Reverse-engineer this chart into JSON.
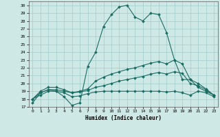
{
  "xlabel": "Humidex (Indice chaleur)",
  "xlim": [
    -0.5,
    23.5
  ],
  "ylim": [
    17,
    30.5
  ],
  "yticks": [
    17,
    18,
    19,
    20,
    21,
    22,
    23,
    24,
    25,
    26,
    27,
    28,
    29,
    30
  ],
  "xticks": [
    0,
    1,
    2,
    3,
    4,
    5,
    6,
    7,
    8,
    9,
    10,
    11,
    12,
    13,
    14,
    15,
    16,
    17,
    18,
    19,
    20,
    21,
    22,
    23
  ],
  "bg_color": "#cde8e5",
  "grid_color": "#a0ccc8",
  "line_color": "#1a6b63",
  "lines": [
    {
      "x": [
        0,
        1,
        2,
        3,
        4,
        5,
        6,
        7,
        8,
        9,
        10,
        11,
        12,
        13,
        14,
        15,
        16,
        17,
        18,
        19,
        20,
        21,
        22,
        23
      ],
      "y": [
        17.5,
        18.8,
        19.2,
        19.0,
        18.3,
        17.2,
        17.5,
        22.2,
        24.0,
        27.3,
        28.8,
        29.8,
        30.0,
        28.5,
        28.0,
        29.0,
        28.8,
        26.5,
        23.0,
        20.5,
        20.5,
        19.5,
        19.0,
        18.5
      ]
    },
    {
      "x": [
        0,
        1,
        2,
        3,
        4,
        5,
        6,
        7,
        8,
        9,
        10,
        11,
        12,
        13,
        14,
        15,
        16,
        17,
        18,
        19,
        20,
        21,
        22,
        23
      ],
      "y": [
        18.0,
        19.0,
        19.5,
        19.5,
        19.2,
        18.8,
        19.0,
        19.3,
        20.3,
        20.8,
        21.2,
        21.5,
        21.8,
        22.0,
        22.3,
        22.6,
        22.8,
        22.5,
        23.0,
        22.5,
        20.5,
        20.0,
        19.3,
        18.5
      ]
    },
    {
      "x": [
        0,
        1,
        2,
        3,
        4,
        5,
        6,
        7,
        8,
        9,
        10,
        11,
        12,
        13,
        14,
        15,
        16,
        17,
        18,
        19,
        20,
        21,
        22,
        23
      ],
      "y": [
        18.0,
        18.8,
        19.2,
        19.2,
        19.0,
        18.8,
        18.9,
        19.1,
        19.5,
        19.7,
        20.0,
        20.3,
        20.5,
        20.7,
        20.9,
        21.2,
        21.4,
        21.2,
        21.5,
        21.3,
        20.0,
        19.7,
        19.2,
        18.5
      ]
    },
    {
      "x": [
        0,
        1,
        2,
        3,
        4,
        5,
        6,
        7,
        8,
        9,
        10,
        11,
        12,
        13,
        14,
        15,
        16,
        17,
        18,
        19,
        20,
        21,
        22,
        23
      ],
      "y": [
        18.0,
        18.5,
        19.0,
        19.0,
        18.8,
        18.3,
        18.4,
        18.7,
        18.9,
        19.0,
        19.0,
        19.0,
        19.0,
        19.0,
        19.0,
        19.0,
        19.0,
        18.9,
        19.0,
        18.8,
        18.5,
        19.0,
        18.8,
        18.3
      ]
    }
  ]
}
